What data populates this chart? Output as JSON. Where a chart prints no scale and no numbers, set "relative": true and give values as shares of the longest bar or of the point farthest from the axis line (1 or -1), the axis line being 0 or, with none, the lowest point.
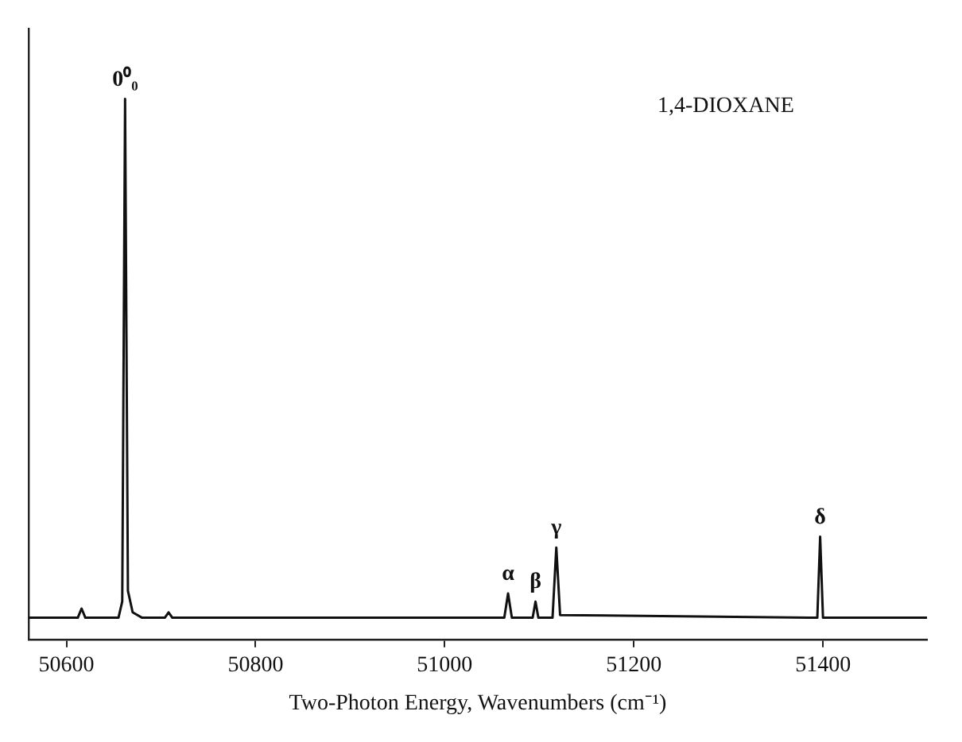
{
  "chart_data": {
    "type": "line",
    "relative": true,
    "xlabel": "Two-Photon Energy, Wavenumbers (cm⁻¹)",
    "xlim": [
      50560,
      51510
    ],
    "xticks": [
      50600,
      50800,
      51000,
      51200,
      51400
    ],
    "grid": false,
    "legend": false,
    "marker": "none",
    "line_style": "solid",
    "series": [
      {
        "color": "#111111",
        "x": [
          50560,
          50612,
          50616,
          50620,
          50655,
          50659,
          50662,
          50665,
          50670,
          50680,
          50704,
          50708,
          50712,
          51063,
          51067,
          51071,
          51093,
          51096,
          51099,
          51114,
          51118,
          51122,
          51394,
          51397,
          51400,
          51510
        ],
        "values": [
          0.04,
          0.04,
          0.057,
          0.04,
          0.04,
          0.07,
          1.0,
          0.09,
          0.05,
          0.04,
          0.04,
          0.05,
          0.04,
          0.04,
          0.085,
          0.04,
          0.04,
          0.07,
          0.04,
          0.04,
          0.17,
          0.045,
          0.04,
          0.19,
          0.04,
          0.04
        ]
      }
    ],
    "annotations": [
      "1,4-DIOXANE",
      {
        "text": "0⁰₀",
        "x": 50662,
        "y": 1.0
      },
      {
        "text": "α",
        "x": 51067,
        "y": 0.085
      },
      {
        "text": "β",
        "x": 51096,
        "y": 0.07
      },
      {
        "text": "γ",
        "x": 51118,
        "y": 0.17
      },
      {
        "text": "δ",
        "x": 51397,
        "y": 0.19
      }
    ]
  }
}
